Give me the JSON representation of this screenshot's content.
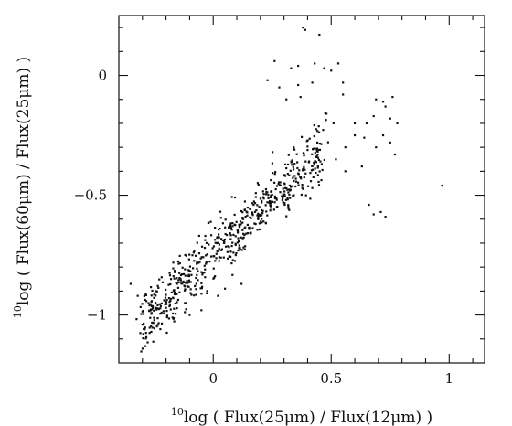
{
  "chart_data": {
    "type": "scatter",
    "title": "",
    "xlabel": "10log ( Flux(25μm) / Flux(12μm) )",
    "ylabel": "10log ( Flux(60μm) / Flux(25μm) )",
    "xlabel_parts": {
      "superscript": "10",
      "base": "log",
      "body": " ( Flux(25",
      "mu": "μ",
      "tail": "m) / Flux(12",
      "mu2": "μ",
      "end": "m) )"
    },
    "ylabel_parts": {
      "superscript": "10",
      "base": "log",
      "body": " ( Flux(60",
      "mu": "μ",
      "tail": "m) / Flux(25",
      "mu2": "μ",
      "end": "m) )"
    },
    "xlim": [
      -0.4,
      1.15
    ],
    "ylim": [
      -1.2,
      0.25
    ],
    "xticks": [
      {
        "value": 0,
        "label": "0"
      },
      {
        "value": 0.5,
        "label": "0.5"
      },
      {
        "value": 1,
        "label": "1"
      }
    ],
    "yticks": [
      {
        "value": 0,
        "label": "0"
      },
      {
        "value": -0.5,
        "label": "−0.5"
      },
      {
        "value": -1,
        "label": "−1"
      }
    ],
    "xminor": [
      -0.3,
      -0.2,
      -0.1,
      0.1,
      0.2,
      0.3,
      0.4,
      0.6,
      0.7,
      0.8,
      0.9,
      1.1
    ],
    "yminor": [
      0.1,
      0.2,
      -0.1,
      -0.2,
      -0.3,
      -0.4,
      -0.6,
      -0.7,
      -0.8,
      -0.9,
      -1.1
    ],
    "grid": false,
    "legend": "none",
    "marker_color": "#111111",
    "axis_color": "#111111",
    "background": "#ffffff",
    "cluster": {
      "n": 640,
      "x_start": -0.3,
      "x_end": 0.47,
      "y_intercept": -0.75,
      "slope": 0.93,
      "y_spread": 0.09,
      "x_spread": 0.02
    },
    "sparse_points": [
      {
        "x": 0.38,
        "y": 0.2
      },
      {
        "x": 0.39,
        "y": 0.19
      },
      {
        "x": 0.45,
        "y": 0.17
      },
      {
        "x": 0.26,
        "y": 0.06
      },
      {
        "x": 0.33,
        "y": 0.03
      },
      {
        "x": 0.36,
        "y": 0.04
      },
      {
        "x": 0.43,
        "y": 0.05
      },
      {
        "x": 0.47,
        "y": 0.03
      },
      {
        "x": 0.5,
        "y": 0.02
      },
      {
        "x": 0.53,
        "y": 0.05
      },
      {
        "x": 0.23,
        "y": -0.02
      },
      {
        "x": 0.28,
        "y": -0.05
      },
      {
        "x": 0.36,
        "y": -0.04
      },
      {
        "x": 0.42,
        "y": -0.03
      },
      {
        "x": 0.55,
        "y": -0.03
      },
      {
        "x": 0.31,
        "y": -0.1
      },
      {
        "x": 0.37,
        "y": -0.09
      },
      {
        "x": 0.55,
        "y": -0.08
      },
      {
        "x": 0.48,
        "y": -0.16
      },
      {
        "x": 0.51,
        "y": -0.2
      },
      {
        "x": 0.6,
        "y": -0.2
      },
      {
        "x": 0.65,
        "y": -0.2
      },
      {
        "x": 0.68,
        "y": -0.17
      },
      {
        "x": 0.69,
        "y": -0.1
      },
      {
        "x": 0.72,
        "y": -0.11
      },
      {
        "x": 0.73,
        "y": -0.13
      },
      {
        "x": 0.76,
        "y": -0.09
      },
      {
        "x": 0.75,
        "y": -0.18
      },
      {
        "x": 0.78,
        "y": -0.2
      },
      {
        "x": 0.72,
        "y": -0.25
      },
      {
        "x": 0.69,
        "y": -0.3
      },
      {
        "x": 0.75,
        "y": -0.28
      },
      {
        "x": 0.77,
        "y": -0.33
      },
      {
        "x": 0.64,
        "y": -0.26
      },
      {
        "x": 0.6,
        "y": -0.25
      },
      {
        "x": 0.56,
        "y": -0.3
      },
      {
        "x": 0.56,
        "y": -0.4
      },
      {
        "x": 0.63,
        "y": -0.38
      },
      {
        "x": 0.42,
        "y": -0.47
      },
      {
        "x": 0.46,
        "y": -0.37
      },
      {
        "x": 0.52,
        "y": -0.35
      },
      {
        "x": 0.66,
        "y": -0.54
      },
      {
        "x": 0.68,
        "y": -0.58
      },
      {
        "x": 0.71,
        "y": -0.57
      },
      {
        "x": 0.73,
        "y": -0.59
      },
      {
        "x": 0.97,
        "y": -0.46
      },
      {
        "x": -0.35,
        "y": -0.87
      },
      {
        "x": -0.3,
        "y": -1.04
      },
      {
        "x": -0.32,
        "y": -0.92
      },
      {
        "x": -0.2,
        "y": -0.97
      },
      {
        "x": -0.12,
        "y": -0.95
      },
      {
        "x": -0.1,
        "y": -1.0
      },
      {
        "x": -0.05,
        "y": -0.98
      },
      {
        "x": 0.02,
        "y": -0.92
      },
      {
        "x": 0.05,
        "y": -0.89
      },
      {
        "x": 0.12,
        "y": -0.87
      },
      {
        "x": -0.27,
        "y": -0.96
      }
    ]
  }
}
